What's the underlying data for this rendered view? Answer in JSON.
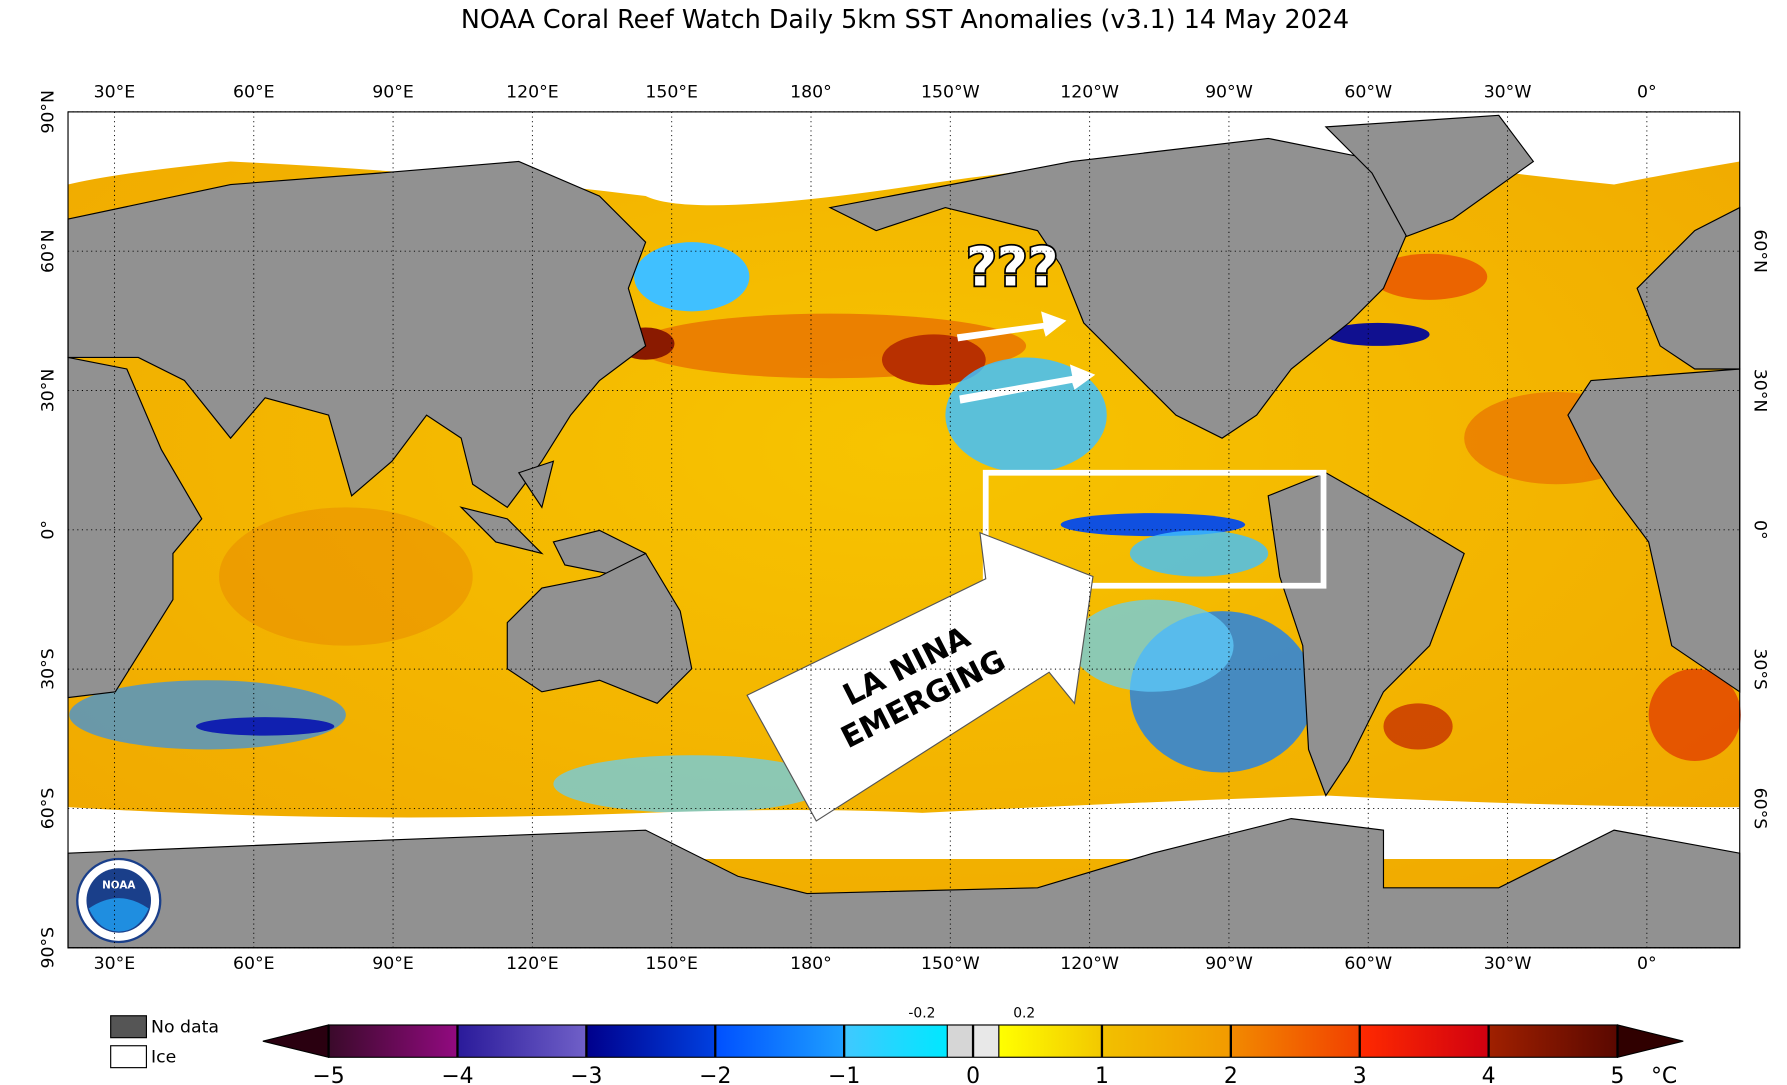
{
  "map": {
    "title": "NOAA Coral Reef Watch Daily 5km SST Anomalies  (v3.1)   14 May 2024",
    "lon_ticks": [
      {
        "value": 30,
        "label": "30°E"
      },
      {
        "value": 60,
        "label": "60°E"
      },
      {
        "value": 90,
        "label": "90°E"
      },
      {
        "value": 120,
        "label": "120°E"
      },
      {
        "value": 150,
        "label": "150°E"
      },
      {
        "value": 180,
        "label": "180°"
      },
      {
        "value": 210,
        "label": "150°W"
      },
      {
        "value": 240,
        "label": "120°W"
      },
      {
        "value": 270,
        "label": "90°W"
      },
      {
        "value": 300,
        "label": "60°W"
      },
      {
        "value": 330,
        "label": "30°W"
      },
      {
        "value": 360,
        "label": "0°"
      }
    ],
    "lat_ticks_left": [
      {
        "value": 90,
        "label": "90°N"
      },
      {
        "value": 60,
        "label": "60°N"
      },
      {
        "value": 30,
        "label": "30°N"
      },
      {
        "value": 0,
        "label": "0°"
      },
      {
        "value": -30,
        "label": "30°S"
      },
      {
        "value": -60,
        "label": "60°S"
      },
      {
        "value": -90,
        "label": "90°S"
      }
    ],
    "lat_ticks_right": [
      {
        "value": 60,
        "label": "60°N"
      },
      {
        "value": 30,
        "label": "30°N"
      },
      {
        "value": 0,
        "label": "0°"
      },
      {
        "value": -30,
        "label": "30°S"
      },
      {
        "value": -60,
        "label": "60°S"
      }
    ],
    "xlim": [
      20,
      380
    ],
    "ylim": [
      -90,
      90
    ],
    "annotations": {
      "question": "???",
      "callout": [
        "LA NINA",
        "EMERGING"
      ]
    },
    "logo": "NOAA",
    "legend": {
      "no_data": "No data",
      "ice": "Ice"
    },
    "colorbar": {
      "lim": [
        -5,
        5
      ],
      "ticks": [
        {
          "value": -5,
          "label": "−5"
        },
        {
          "value": -4,
          "label": "−4"
        },
        {
          "value": -3,
          "label": "−3"
        },
        {
          "value": -2,
          "label": "−2"
        },
        {
          "value": -1,
          "label": "−1"
        },
        0,
        1,
        2,
        3,
        4,
        5
      ],
      "minor_ticks": [
        -0.2,
        0.2
      ],
      "unit": "°C",
      "bins": [
        -5,
        -4,
        -3,
        -2,
        -1,
        -0.2,
        0,
        0.2,
        1,
        2,
        3,
        4,
        5
      ],
      "colors": [
        [
          "#3a0a2a",
          "#920a80"
        ],
        [
          "#2a1a9a",
          "#7060c8"
        ],
        [
          "#00008c",
          "#0040e0"
        ],
        [
          "#0050ff",
          "#1ea0ff"
        ],
        [
          "#40c8ff",
          "#00e8ff"
        ],
        [
          "#d6d6d6",
          "#d6d6d6"
        ],
        [
          "#e8e8e8",
          "#e8e8e8"
        ],
        [
          "#ffff00",
          "#f2c800"
        ],
        [
          "#f2c000",
          "#f29a00"
        ],
        [
          "#f28a00",
          "#f24000"
        ],
        [
          "#ff2a00",
          "#d00010"
        ],
        [
          "#a02000",
          "#5a0800"
        ]
      ],
      "under_color": "#2a0010",
      "over_color": "#300000"
    }
  }
}
